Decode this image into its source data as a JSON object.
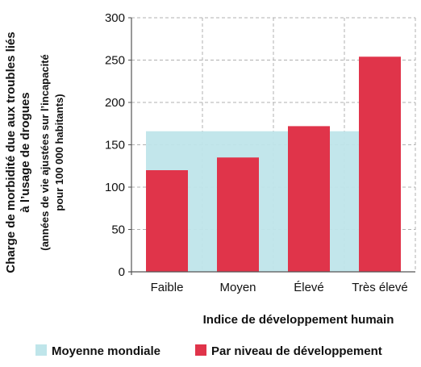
{
  "chart_data": {
    "type": "bar",
    "categories": [
      "Faible",
      "Moyen",
      "Élevé",
      "Très élevé"
    ],
    "series": [
      {
        "name": "Par niveau de développement",
        "values": [
          120,
          135,
          172,
          254
        ],
        "color": "#e0344a"
      }
    ],
    "reference": {
      "name": "Moyenne mondiale",
      "value": 166,
      "color": "#bfe5ea"
    },
    "ylim": [
      0,
      300
    ],
    "yticks": [
      0,
      50,
      100,
      150,
      200,
      250,
      300
    ],
    "xlabel": "Indice de développement humain",
    "ylabel_main": [
      "Charge de morbidité due aux troubles liés",
      "à l’usage de drogues"
    ],
    "ylabel_sub": [
      "(années de vie ajustées sur l’incapacité",
      "pour 100 000 habitants)"
    ],
    "grid": true,
    "legend_position": "bottom"
  }
}
